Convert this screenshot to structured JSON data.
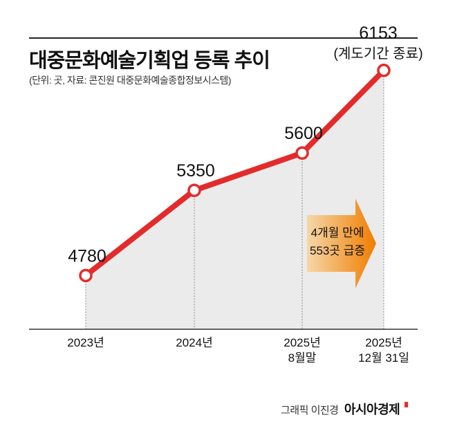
{
  "title": "대중문화예술기획업 등록 추이",
  "subtitle": "(단위: 곳, 자료: 콘진원 대중문화예술종합정보시스템)",
  "credit": {
    "label": "그래픽 이진경",
    "brand": "아시아경제"
  },
  "colors": {
    "line": "#e32b2b",
    "area": "#ebebeb",
    "arrow_start": "#f6d7a8",
    "arrow_end": "#f07d00",
    "text": "#111111"
  },
  "annotation": {
    "lines": [
      "4개월 만에",
      "553곳 급증"
    ]
  },
  "chart_data": {
    "type": "line",
    "title": "대중문화예술기획업 등록 추이",
    "x_labels": [
      [
        "2023년"
      ],
      [
        "2024년"
      ],
      [
        "2025년",
        "8월말"
      ],
      [
        "2025년",
        "12월 31일"
      ]
    ],
    "series": [
      {
        "values": [
          4780,
          5350,
          5600,
          6153
        ]
      }
    ],
    "value_labels": [
      [
        "4780"
      ],
      [
        "5350"
      ],
      [
        "5600"
      ],
      [
        "6153",
        "(계도기간 종료)"
      ]
    ],
    "ylim": [
      4550,
      6300
    ],
    "grid": false,
    "area_fill": true
  }
}
